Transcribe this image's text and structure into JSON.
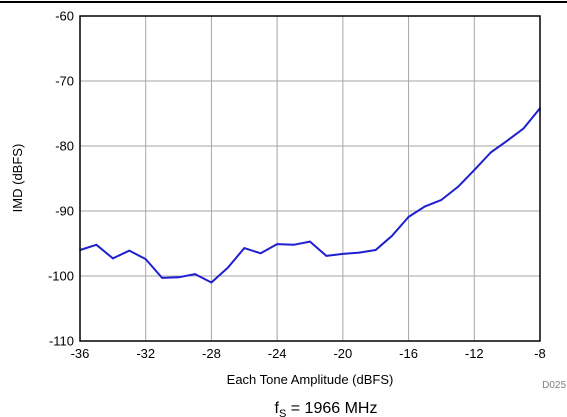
{
  "chart_data": {
    "type": "line",
    "xlabel": "Each Tone Amplitude (dBFS)",
    "ylabel": "IMD (dBFS)",
    "xlim": [
      -36,
      -8
    ],
    "ylim": [
      -110,
      -60
    ],
    "x_ticks": [
      -36,
      -32,
      -28,
      -24,
      -20,
      -16,
      -12,
      -8
    ],
    "y_ticks": [
      -110,
      -100,
      -90,
      -80,
      -70,
      -60
    ],
    "grid": true,
    "series": [
      {
        "color": "#1f1fd0",
        "x": [
          -36,
          -35,
          -34,
          -33,
          -32,
          -31,
          -30,
          -29,
          -28,
          -27,
          -26,
          -25,
          -24,
          -23,
          -22,
          -21,
          -20,
          -19,
          -18,
          -17,
          -16,
          -15,
          -14,
          -13,
          -12,
          -11,
          -10,
          -9,
          -8
        ],
        "y": [
          -96.0,
          -95.2,
          -97.3,
          -96.1,
          -97.4,
          -100.3,
          -100.2,
          -99.7,
          -101.0,
          -98.7,
          -95.7,
          -96.5,
          -95.1,
          -95.2,
          -94.7,
          -96.9,
          -96.6,
          -96.4,
          -96.0,
          -93.8,
          -90.9,
          -89.3,
          -88.3,
          -86.3,
          -83.7,
          -81.0,
          -79.2,
          -77.3,
          -74.2
        ]
      }
    ],
    "figure_id": "D025",
    "caption_main": "f",
    "caption_sub": "S",
    "caption_rest": " = 1966 MHz"
  }
}
